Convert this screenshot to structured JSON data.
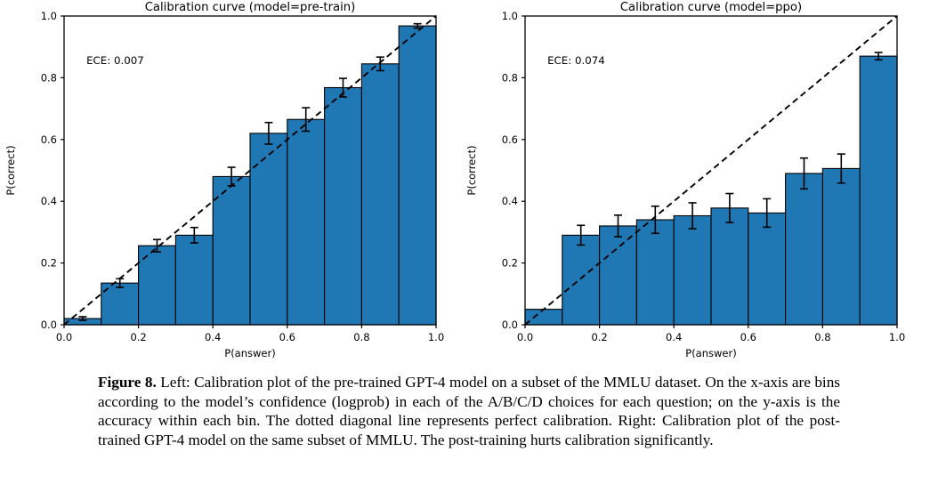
{
  "figure": {
    "caption_label": "Figure 8.",
    "caption_text": "Left: Calibration plot of the pre-trained GPT-4 model on a subset of the MMLU dataset. On the x-axis are bins according to the model’s confidence (logprob) in each of the A/B/C/D choices for each question; on the y-axis is the accuracy within each bin. The dotted diagonal line represents perfect calibration. Right: Calibration plot of the post-trained GPT-4 model on the same subset of MMLU. The post-training hurts calibration significantly."
  },
  "colors": {
    "bar_fill": "#1f77b4",
    "bar_edge": "#000000",
    "diagonal_line": "#000000",
    "error_bar": "#000000",
    "axis": "#000000",
    "background": "#ffffff"
  },
  "chart_data": [
    {
      "type": "bar",
      "title": "Calibration curve (model=pre-train)",
      "annotation": "ECE: 0.007",
      "xlabel": "P(answer)",
      "ylabel": "P(correct)",
      "xlim": [
        0.0,
        1.0
      ],
      "ylim": [
        0.0,
        1.0
      ],
      "xticks": [
        "0.0",
        "0.2",
        "0.4",
        "0.6",
        "0.8",
        "1.0"
      ],
      "yticks": [
        "0.0",
        "0.2",
        "0.4",
        "0.6",
        "0.8",
        "1.0"
      ],
      "grid": false,
      "legend": null,
      "bin_edges": [
        0.0,
        0.1,
        0.2,
        0.3,
        0.4,
        0.5,
        0.6,
        0.7,
        0.8,
        0.9,
        1.0
      ],
      "bin_centers": [
        0.05,
        0.15,
        0.25,
        0.35,
        0.45,
        0.55,
        0.65,
        0.75,
        0.85,
        0.95
      ],
      "values": [
        0.02,
        0.135,
        0.256,
        0.29,
        0.48,
        0.62,
        0.665,
        0.768,
        0.845,
        0.968
      ],
      "errors": [
        0.006,
        0.014,
        0.02,
        0.025,
        0.03,
        0.035,
        0.038,
        0.03,
        0.022,
        0.007
      ],
      "diagonal": {
        "from": [
          0.0,
          0.0
        ],
        "to": [
          1.0,
          1.0
        ],
        "style": "dashed",
        "meaning": "perfect calibration"
      }
    },
    {
      "type": "bar",
      "title": "Calibration curve (model=ppo)",
      "annotation": "ECE: 0.074",
      "xlabel": "P(answer)",
      "ylabel": "P(correct)",
      "xlim": [
        0.0,
        1.0
      ],
      "ylim": [
        0.0,
        1.0
      ],
      "xticks": [
        "0.0",
        "0.2",
        "0.4",
        "0.6",
        "0.8",
        "1.0"
      ],
      "yticks": [
        "0.0",
        "0.2",
        "0.4",
        "0.6",
        "0.8",
        "1.0"
      ],
      "grid": false,
      "legend": null,
      "bin_edges": [
        0.0,
        0.1,
        0.2,
        0.3,
        0.4,
        0.5,
        0.6,
        0.7,
        0.8,
        0.9,
        1.0
      ],
      "bin_centers": [
        0.05,
        0.15,
        0.25,
        0.35,
        0.45,
        0.55,
        0.65,
        0.75,
        0.85,
        0.95
      ],
      "values": [
        0.05,
        0.29,
        0.32,
        0.34,
        0.353,
        0.378,
        0.362,
        0.49,
        0.506,
        0.87
      ],
      "errors": [
        0.0,
        0.032,
        0.035,
        0.044,
        0.042,
        0.047,
        0.046,
        0.05,
        0.047,
        0.012
      ],
      "diagonal": {
        "from": [
          0.0,
          0.0
        ],
        "to": [
          1.0,
          1.0
        ],
        "style": "dashed",
        "meaning": "perfect calibration"
      }
    }
  ]
}
